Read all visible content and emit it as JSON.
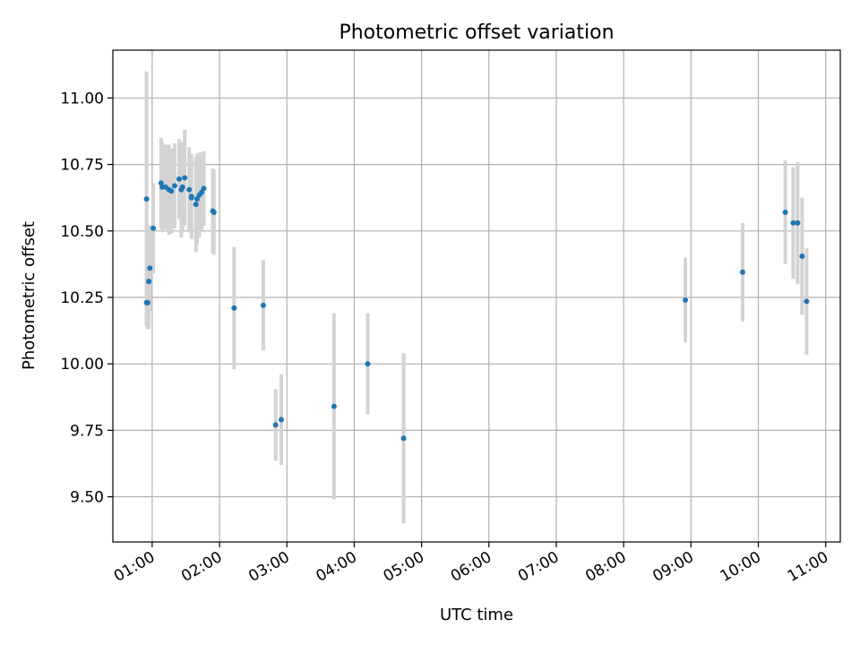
{
  "chart_data": {
    "type": "scatter",
    "title": "Photometric offset variation",
    "xlabel": "UTC time",
    "ylabel": "Photometric offset",
    "grid": true,
    "x_ticks": [
      "01:00",
      "02:00",
      "03:00",
      "04:00",
      "05:00",
      "06:00",
      "07:00",
      "08:00",
      "09:00",
      "10:00",
      "11:00"
    ],
    "y_ticks": [
      "9.50",
      "9.75",
      "10.00",
      "10.25",
      "10.50",
      "10.75",
      "11.00"
    ],
    "xlim": [
      "00:25",
      "11:13"
    ],
    "ylim": [
      9.33,
      11.18
    ],
    "colors": {
      "point": "#1f77b4",
      "errorbar": "#d3d3d3",
      "grid": "#b0b0b0"
    },
    "series": [
      {
        "points": [
          {
            "x": "00:55",
            "y": 10.62,
            "err": 0.48
          },
          {
            "x": "00:55",
            "y": 10.23,
            "err": 0.08
          },
          {
            "x": "00:56",
            "y": 10.23,
            "err": 0.1
          },
          {
            "x": "00:57",
            "y": 10.31,
            "err": 0.18
          },
          {
            "x": "00:58",
            "y": 10.36,
            "err": 0.16
          },
          {
            "x": "01:01",
            "y": 10.51,
            "err": 0.17
          },
          {
            "x": "01:08",
            "y": 10.68,
            "err": 0.17
          },
          {
            "x": "01:09",
            "y": 10.665,
            "err": 0.17
          },
          {
            "x": "01:12",
            "y": 10.665,
            "err": 0.16
          },
          {
            "x": "01:15",
            "y": 10.655,
            "err": 0.17
          },
          {
            "x": "01:17",
            "y": 10.65,
            "err": 0.16
          },
          {
            "x": "01:20",
            "y": 10.67,
            "err": 0.16
          },
          {
            "x": "01:24",
            "y": 10.695,
            "err": 0.15
          },
          {
            "x": "01:26",
            "y": 10.655,
            "err": 0.18
          },
          {
            "x": "01:27",
            "y": 10.665,
            "err": 0.17
          },
          {
            "x": "01:29",
            "y": 10.7,
            "err": 0.18
          },
          {
            "x": "01:33",
            "y": 10.655,
            "err": 0.16
          },
          {
            "x": "01:35",
            "y": 10.63,
            "err": 0.16
          },
          {
            "x": "01:35",
            "y": 10.625,
            "err": 0.14
          },
          {
            "x": "01:39",
            "y": 10.6,
            "err": 0.18
          },
          {
            "x": "01:40",
            "y": 10.62,
            "err": 0.17
          },
          {
            "x": "01:42",
            "y": 10.635,
            "err": 0.16
          },
          {
            "x": "01:44",
            "y": 10.645,
            "err": 0.15
          },
          {
            "x": "01:46",
            "y": 10.66,
            "err": 0.14
          },
          {
            "x": "01:54",
            "y": 10.575,
            "err": 0.16
          },
          {
            "x": "01:55",
            "y": 10.57,
            "err": 0.16
          },
          {
            "x": "02:13",
            "y": 10.21,
            "err": 0.23
          },
          {
            "x": "02:39",
            "y": 10.22,
            "err": 0.17
          },
          {
            "x": "02:50",
            "y": 9.77,
            "err": 0.135
          },
          {
            "x": "02:55",
            "y": 9.79,
            "err": 0.17
          },
          {
            "x": "03:42",
            "y": 9.84,
            "err": 0.35
          },
          {
            "x": "04:12",
            "y": 10.0,
            "err": 0.19
          },
          {
            "x": "04:44",
            "y": 9.72,
            "err": 0.32
          },
          {
            "x": "08:55",
            "y": 10.24,
            "err": 0.16
          },
          {
            "x": "09:46",
            "y": 10.345,
            "err": 0.185
          },
          {
            "x": "10:24",
            "y": 10.57,
            "err": 0.195
          },
          {
            "x": "10:31",
            "y": 10.53,
            "err": 0.21
          },
          {
            "x": "10:35",
            "y": 10.53,
            "err": 0.23
          },
          {
            "x": "10:39",
            "y": 10.405,
            "err": 0.22
          },
          {
            "x": "10:43",
            "y": 10.235,
            "err": 0.2
          }
        ]
      }
    ]
  }
}
